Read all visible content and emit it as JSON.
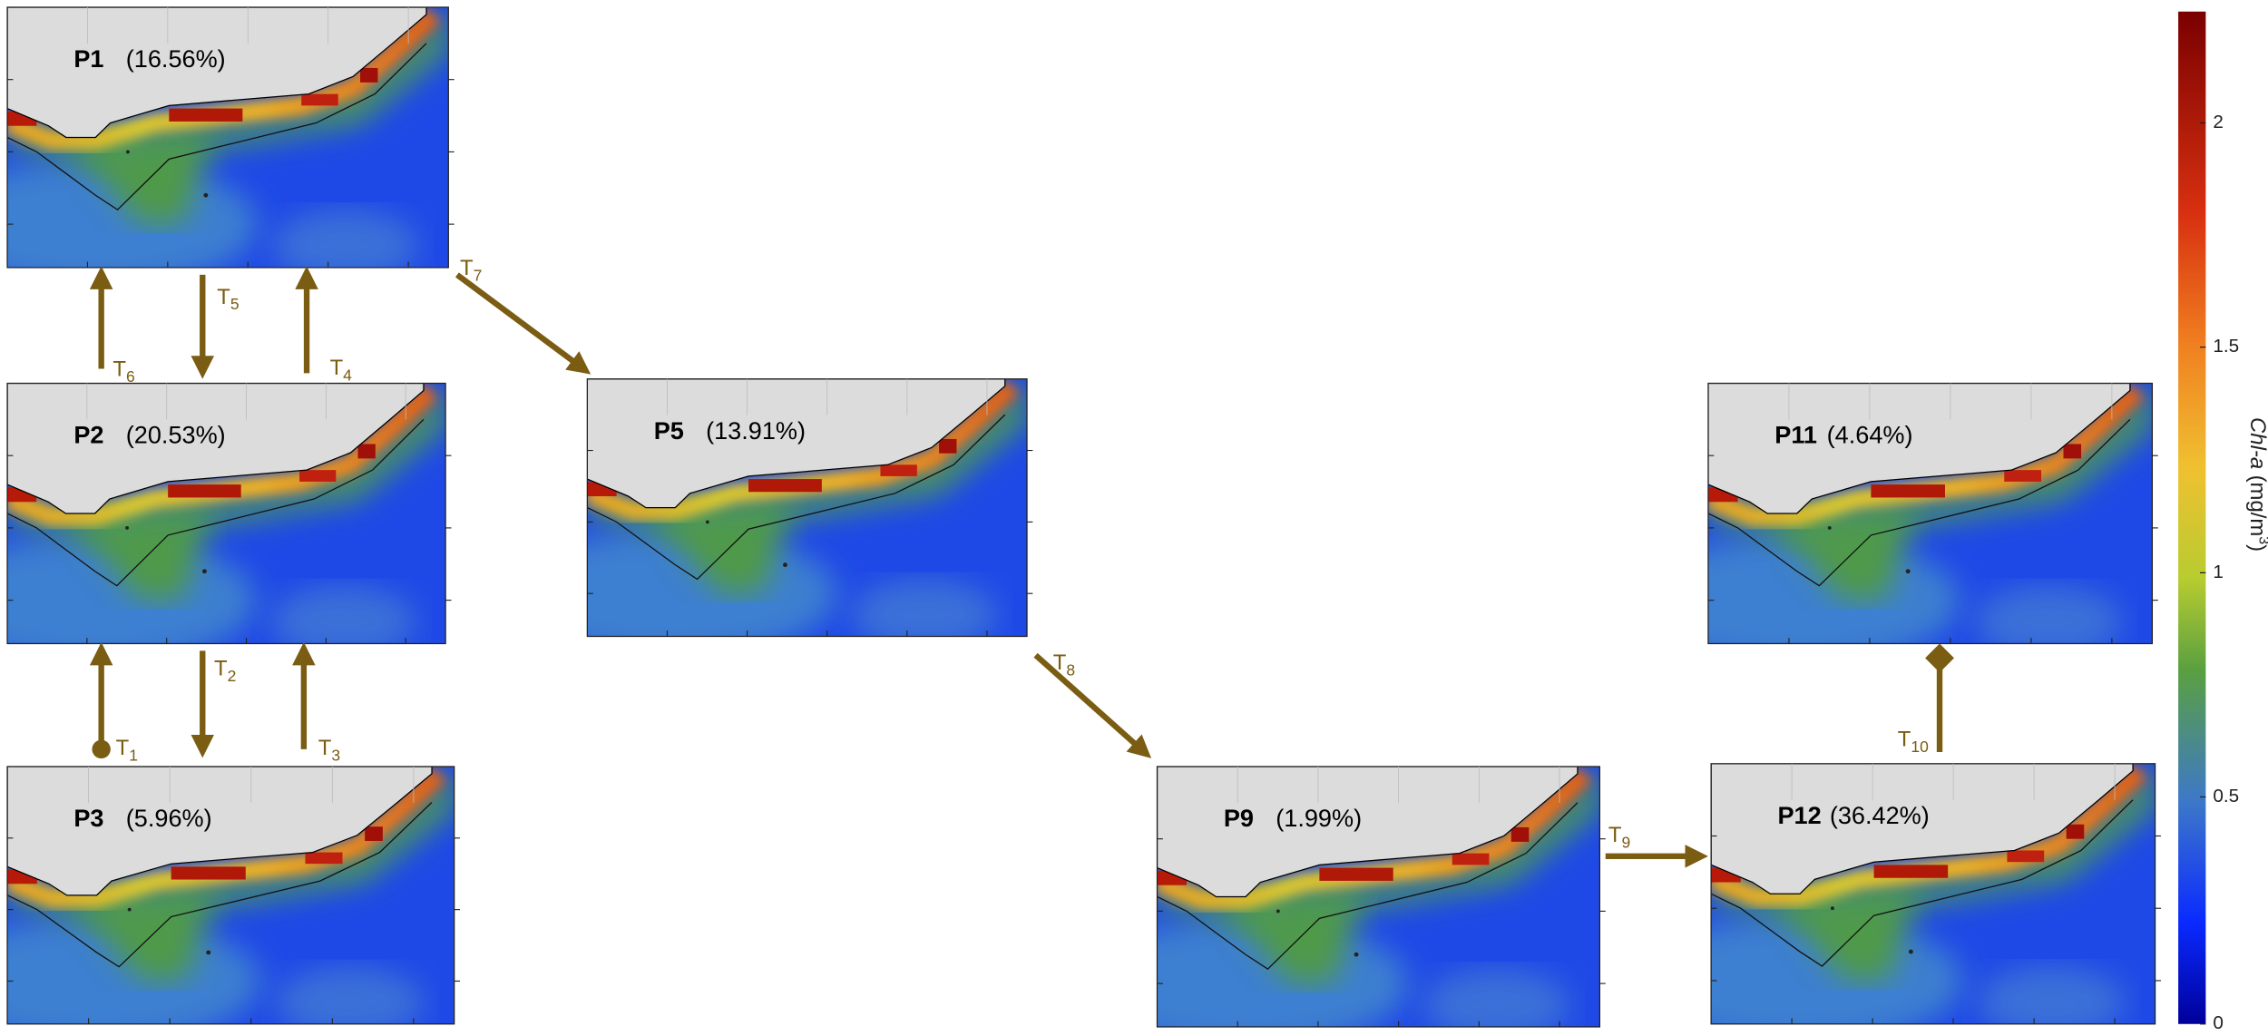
{
  "panels": [
    {
      "label": "P1",
      "share": "(16.56%)"
    },
    {
      "label": "P2",
      "share": "(20.53%)"
    },
    {
      "label": "P3",
      "share": "(5.96%)"
    },
    {
      "label": "P5",
      "share": "(13.91%)"
    },
    {
      "label": "P9",
      "share": "(1.99%)"
    },
    {
      "label": "P11",
      "share": "(4.64%)"
    },
    {
      "label": "P12",
      "share": "(36.42%)"
    }
  ],
  "transitions": [
    {
      "name": "T",
      "sub": "1"
    },
    {
      "name": "T",
      "sub": "2"
    },
    {
      "name": "T",
      "sub": "3"
    },
    {
      "name": "T",
      "sub": "4"
    },
    {
      "name": "T",
      "sub": "5"
    },
    {
      "name": "T",
      "sub": "6"
    },
    {
      "name": "T",
      "sub": "7"
    },
    {
      "name": "T",
      "sub": "8"
    },
    {
      "name": "T",
      "sub": "9"
    },
    {
      "name": "T",
      "sub": "10"
    }
  ],
  "colorbar": {
    "title": "Chl-a",
    "unit_pre": "(mg/m",
    "unit_sup": "3",
    "unit_post": ")",
    "ticks": [
      "0",
      "0.5",
      "1",
      "1.5",
      "2"
    ]
  }
}
